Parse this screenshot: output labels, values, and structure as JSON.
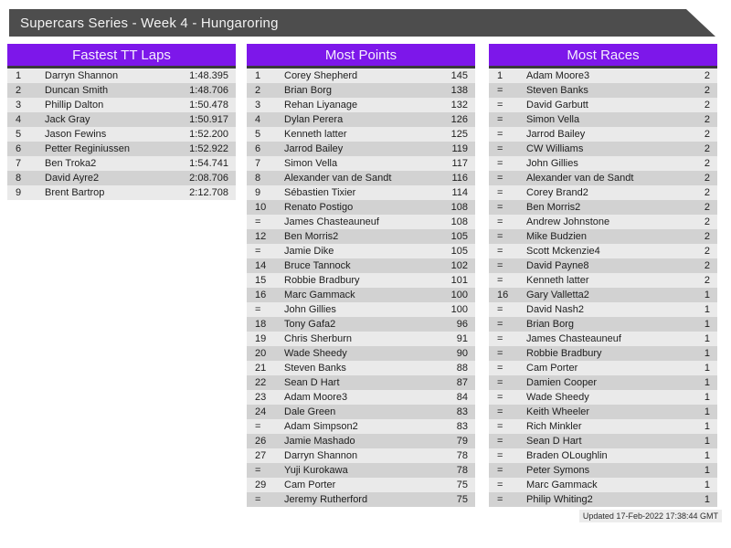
{
  "page": {
    "title": "Supercars Series - Week 4 - Hungaroring",
    "updated": "Updated 17-Feb-2022 17:38:44 GMT"
  },
  "colors": {
    "banner_bg": "#4d4d4d",
    "accent_purple": "#7d17ea",
    "separator": "#3a3a3a",
    "row_light": "#eaeaea",
    "row_dark": "#d2d2d2"
  },
  "tables": [
    {
      "title": "Fastest TT Laps",
      "rows": [
        {
          "rank": "1",
          "name": "Darryn Shannon",
          "value": "1:48.395"
        },
        {
          "rank": "2",
          "name": "Duncan Smith",
          "value": "1:48.706"
        },
        {
          "rank": "3",
          "name": "Phillip Dalton",
          "value": "1:50.478"
        },
        {
          "rank": "4",
          "name": "Jack Gray",
          "value": "1:50.917"
        },
        {
          "rank": "5",
          "name": "Jason Fewins",
          "value": "1:52.200"
        },
        {
          "rank": "6",
          "name": "Petter Reginiussen",
          "value": "1:52.922"
        },
        {
          "rank": "7",
          "name": "Ben Troka2",
          "value": "1:54.741"
        },
        {
          "rank": "8",
          "name": "David Ayre2",
          "value": "2:08.706"
        },
        {
          "rank": "9",
          "name": "Brent Bartrop",
          "value": "2:12.708"
        }
      ]
    },
    {
      "title": "Most Points",
      "rows": [
        {
          "rank": "1",
          "name": "Corey Shepherd",
          "value": "145"
        },
        {
          "rank": "2",
          "name": "Brian Borg",
          "value": "138"
        },
        {
          "rank": "3",
          "name": "Rehan Liyanage",
          "value": "132"
        },
        {
          "rank": "4",
          "name": "Dylan Perera",
          "value": "126"
        },
        {
          "rank": "5",
          "name": "Kenneth latter",
          "value": "125"
        },
        {
          "rank": "6",
          "name": "Jarrod Bailey",
          "value": "119"
        },
        {
          "rank": "7",
          "name": "Simon Vella",
          "value": "117"
        },
        {
          "rank": "8",
          "name": "Alexander van de Sandt",
          "value": "116"
        },
        {
          "rank": "9",
          "name": "Sébastien Tixier",
          "value": "114"
        },
        {
          "rank": "10",
          "name": "Renato Postigo",
          "value": "108"
        },
        {
          "rank": "=",
          "name": "James Chasteauneuf",
          "value": "108"
        },
        {
          "rank": "12",
          "name": "Ben Morris2",
          "value": "105"
        },
        {
          "rank": "=",
          "name": "Jamie Dike",
          "value": "105"
        },
        {
          "rank": "14",
          "name": "Bruce Tannock",
          "value": "102"
        },
        {
          "rank": "15",
          "name": "Robbie Bradbury",
          "value": "101"
        },
        {
          "rank": "16",
          "name": "Marc Gammack",
          "value": "100"
        },
        {
          "rank": "=",
          "name": "John Gillies",
          "value": "100"
        },
        {
          "rank": "18",
          "name": "Tony Gafa2",
          "value": "96"
        },
        {
          "rank": "19",
          "name": "Chris Sherburn",
          "value": "91"
        },
        {
          "rank": "20",
          "name": "Wade Sheedy",
          "value": "90"
        },
        {
          "rank": "21",
          "name": "Steven Banks",
          "value": "88"
        },
        {
          "rank": "22",
          "name": "Sean D Hart",
          "value": "87"
        },
        {
          "rank": "23",
          "name": "Adam Moore3",
          "value": "84"
        },
        {
          "rank": "24",
          "name": "Dale Green",
          "value": "83"
        },
        {
          "rank": "=",
          "name": "Adam Simpson2",
          "value": "83"
        },
        {
          "rank": "26",
          "name": "Jamie Mashado",
          "value": "79"
        },
        {
          "rank": "27",
          "name": "Darryn Shannon",
          "value": "78"
        },
        {
          "rank": "=",
          "name": "Yuji Kurokawa",
          "value": "78"
        },
        {
          "rank": "29",
          "name": "Cam Porter",
          "value": "75"
        },
        {
          "rank": "=",
          "name": "Jeremy Rutherford",
          "value": "75"
        }
      ]
    },
    {
      "title": "Most Races",
      "rows": [
        {
          "rank": "1",
          "name": "Adam Moore3",
          "value": "2"
        },
        {
          "rank": "=",
          "name": "Steven Banks",
          "value": "2"
        },
        {
          "rank": "=",
          "name": "David Garbutt",
          "value": "2"
        },
        {
          "rank": "=",
          "name": "Simon Vella",
          "value": "2"
        },
        {
          "rank": "=",
          "name": "Jarrod Bailey",
          "value": "2"
        },
        {
          "rank": "=",
          "name": "CW Williams",
          "value": "2"
        },
        {
          "rank": "=",
          "name": "John Gillies",
          "value": "2"
        },
        {
          "rank": "=",
          "name": "Alexander van de Sandt",
          "value": "2"
        },
        {
          "rank": "=",
          "name": "Corey Brand2",
          "value": "2"
        },
        {
          "rank": "=",
          "name": "Ben Morris2",
          "value": "2"
        },
        {
          "rank": "=",
          "name": "Andrew Johnstone",
          "value": "2"
        },
        {
          "rank": "=",
          "name": "Mike Budzien",
          "value": "2"
        },
        {
          "rank": "=",
          "name": "Scott Mckenzie4",
          "value": "2"
        },
        {
          "rank": "=",
          "name": "David Payne8",
          "value": "2"
        },
        {
          "rank": "=",
          "name": "Kenneth latter",
          "value": "2"
        },
        {
          "rank": "16",
          "name": "Gary Valletta2",
          "value": "1"
        },
        {
          "rank": "=",
          "name": "David Nash2",
          "value": "1"
        },
        {
          "rank": "=",
          "name": "Brian Borg",
          "value": "1"
        },
        {
          "rank": "=",
          "name": "James Chasteauneuf",
          "value": "1"
        },
        {
          "rank": "=",
          "name": "Robbie Bradbury",
          "value": "1"
        },
        {
          "rank": "=",
          "name": "Cam Porter",
          "value": "1"
        },
        {
          "rank": "=",
          "name": "Damien Cooper",
          "value": "1"
        },
        {
          "rank": "=",
          "name": "Wade Sheedy",
          "value": "1"
        },
        {
          "rank": "=",
          "name": "Keith Wheeler",
          "value": "1"
        },
        {
          "rank": "=",
          "name": "Rich Minkler",
          "value": "1"
        },
        {
          "rank": "=",
          "name": "Sean D Hart",
          "value": "1"
        },
        {
          "rank": "=",
          "name": "Braden OLoughlin",
          "value": "1"
        },
        {
          "rank": "=",
          "name": "Peter Symons",
          "value": "1"
        },
        {
          "rank": "=",
          "name": "Marc Gammack",
          "value": "1"
        },
        {
          "rank": "=",
          "name": "Philip Whiting2",
          "value": "1"
        }
      ]
    }
  ]
}
